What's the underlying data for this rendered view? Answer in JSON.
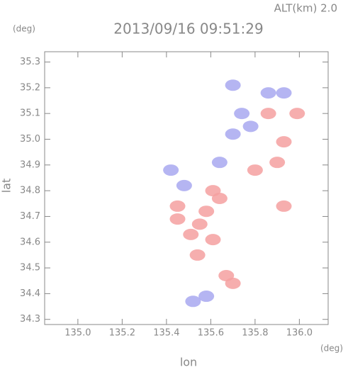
{
  "chart_data": {
    "type": "scatter",
    "title": "2013/09/16 09:51:29",
    "subtitle": "ALT(km)  2.0",
    "x_unit": "(deg)",
    "y_unit": "(deg)",
    "xlabel": "lon",
    "ylabel": "lat",
    "xlim": [
      134.85,
      136.13
    ],
    "ylim": [
      34.28,
      35.34
    ],
    "xticks": [
      {
        "value": 135,
        "label": "135.0"
      },
      135.2,
      135.4,
      135.6,
      135.8,
      {
        "value": 136,
        "label": "136.0"
      }
    ],
    "yticks": [
      34.3,
      34.4,
      34.5,
      34.6,
      34.7,
      34.8,
      34.9,
      {
        "value": 35,
        "label": "35.0"
      },
      35.1,
      35.2,
      35.3
    ],
    "series": [
      {
        "color": "#f4a0a0",
        "x": [
          135.58,
          135.67,
          135.51,
          135.86,
          135.93,
          135.61,
          135.45,
          135.8,
          135.9,
          135.93,
          135.54,
          135.7,
          135.99,
          135.45,
          135.61,
          135.64,
          135.55
        ],
        "values": [
          34.72,
          34.47,
          34.63,
          35.1,
          34.99,
          34.8,
          34.69,
          34.88,
          34.91,
          34.74,
          34.55,
          34.44,
          35.1,
          34.74,
          34.61,
          34.77,
          34.67
        ]
      },
      {
        "color": "#a8a8f0",
        "x": [
          135.7,
          135.86,
          135.74,
          135.42,
          135.7,
          135.58,
          135.93,
          135.64,
          135.48,
          135.78,
          135.52
        ],
        "values": [
          35.21,
          35.18,
          35.1,
          34.88,
          35.02,
          34.39,
          35.18,
          34.91,
          34.82,
          35.05,
          34.37
        ]
      }
    ]
  }
}
